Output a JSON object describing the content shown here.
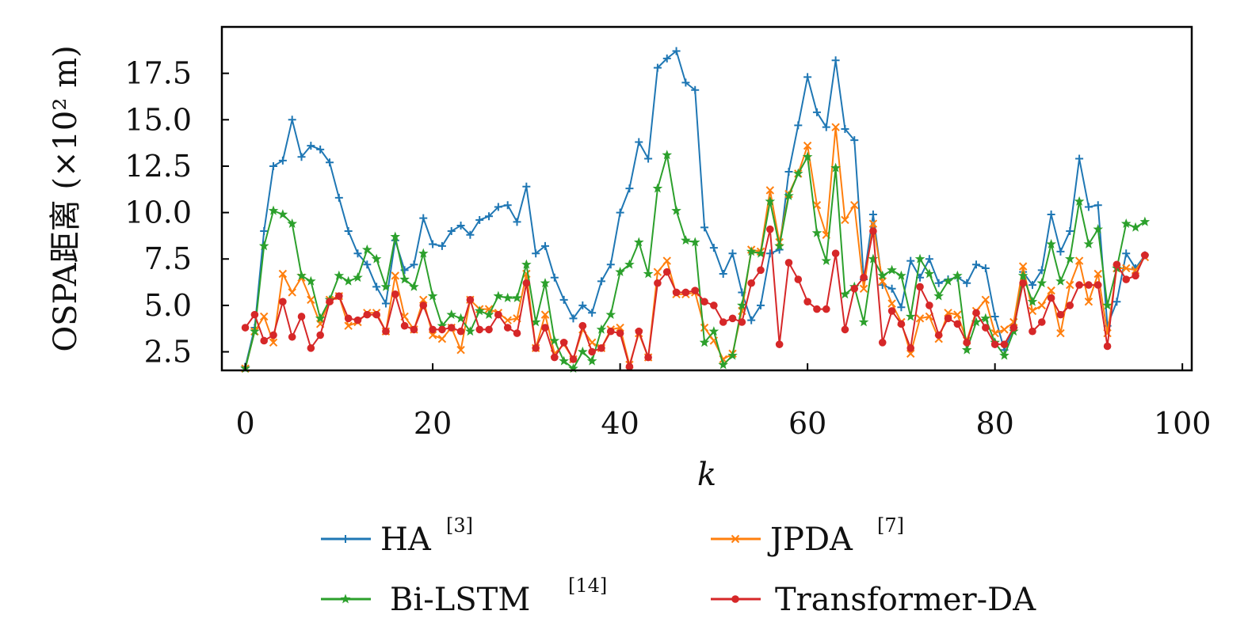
{
  "chart_data": {
    "type": "line",
    "xlabel": "k",
    "ylabel": "OSPA距离 (×10² m)",
    "xlim": [
      -2.5,
      101
    ],
    "ylim": [
      1.5,
      20
    ],
    "xticks": [
      0,
      20,
      40,
      60,
      80,
      100
    ],
    "yticks": [
      2.5,
      5.0,
      7.5,
      10.0,
      12.5,
      15.0,
      17.5
    ],
    "xtick_labels": [
      "0",
      "20",
      "40",
      "60",
      "80",
      "100"
    ],
    "ytick_labels": [
      "2.5",
      "5.0",
      "7.5",
      "10.0",
      "12.5",
      "15.0",
      "17.5"
    ],
    "grid": false,
    "legend_position": "bottom",
    "x": [
      0,
      1,
      2,
      3,
      4,
      5,
      6,
      7,
      8,
      9,
      10,
      11,
      12,
      13,
      14,
      15,
      16,
      17,
      18,
      19,
      20,
      21,
      22,
      23,
      24,
      25,
      26,
      27,
      28,
      29,
      30,
      31,
      32,
      33,
      34,
      35,
      36,
      37,
      38,
      39,
      40,
      41,
      42,
      43,
      44,
      45,
      46,
      47,
      48,
      49,
      50,
      51,
      52,
      53,
      54,
      55,
      56,
      57,
      58,
      59,
      60,
      61,
      62,
      63,
      64,
      65,
      66,
      67,
      68,
      69,
      70,
      71,
      72,
      73,
      74,
      75,
      76,
      77,
      78,
      79,
      80,
      81,
      82,
      83,
      84,
      85,
      86,
      87,
      88,
      89,
      90,
      91,
      92,
      93,
      94,
      95,
      96
    ],
    "series": [
      {
        "name": "HA",
        "ref": "[3]",
        "color": "#1f77b4",
        "marker": "plus",
        "values": [
          1.7,
          3.8,
          9.0,
          12.5,
          12.8,
          15.0,
          13.0,
          13.6,
          13.4,
          12.7,
          10.8,
          9.0,
          7.8,
          7.2,
          6.0,
          5.1,
          8.5,
          6.9,
          7.2,
          9.7,
          8.3,
          8.2,
          9.0,
          9.3,
          8.8,
          9.6,
          9.8,
          10.3,
          10.4,
          9.5,
          11.4,
          7.8,
          8.2,
          6.5,
          5.3,
          4.3,
          5.0,
          4.6,
          6.3,
          7.2,
          10.0,
          11.3,
          13.8,
          12.9,
          17.8,
          18.3,
          18.7,
          17.0,
          16.6,
          9.2,
          8.1,
          6.7,
          7.8,
          5.7,
          4.2,
          5.0,
          7.8,
          8.0,
          12.2,
          14.7,
          17.3,
          15.4,
          14.6,
          18.2,
          14.5,
          13.9,
          6.4,
          9.9,
          6.1,
          5.9,
          4.9,
          7.4,
          6.5,
          7.5,
          6.2,
          6.4,
          6.5,
          6.2,
          7.2,
          7.0,
          4.4,
          2.6,
          3.8,
          6.8,
          6.1,
          6.9,
          9.9,
          7.9,
          9.0,
          12.9,
          10.3,
          10.4,
          3.9,
          5.2,
          7.8,
          7.0,
          7.7
        ]
      },
      {
        "name": "JPDA",
        "ref": "[7]",
        "color": "#ff7f0e",
        "marker": "x",
        "values": [
          1.6,
          3.6,
          4.4,
          3.0,
          6.7,
          5.7,
          6.5,
          5.3,
          4.0,
          5.3,
          5.5,
          3.9,
          4.1,
          4.6,
          4.6,
          3.6,
          6.6,
          4.4,
          3.7,
          5.3,
          3.4,
          3.2,
          3.8,
          2.6,
          5.3,
          4.8,
          4.8,
          4.6,
          4.2,
          4.3,
          6.7,
          2.7,
          4.5,
          2.4,
          2.9,
          2.1,
          3.7,
          3.0,
          2.7,
          3.7,
          3.8,
          1.8,
          3.5,
          2.2,
          6.8,
          7.4,
          5.6,
          5.6,
          5.7,
          3.8,
          3.1,
          2.1,
          2.4,
          4.7,
          8.0,
          7.9,
          11.2,
          8.4,
          11.0,
          12.1,
          13.6,
          10.4,
          8.8,
          14.6,
          9.6,
          10.4,
          5.9,
          9.4,
          6.3,
          5.1,
          4.1,
          2.4,
          4.3,
          4.4,
          3.2,
          4.6,
          4.5,
          3.1,
          4.7,
          5.3,
          3.5,
          3.7,
          4.1,
          7.1,
          4.7,
          5.0,
          5.8,
          3.5,
          6.1,
          7.4,
          5.2,
          6.7,
          3.5,
          7.0,
          7.0,
          6.9,
          7.6
        ]
      },
      {
        "name": "Bi-LSTM",
        "ref": "[14]",
        "color": "#2ca02c",
        "marker": "star",
        "values": [
          1.6,
          3.6,
          8.2,
          10.1,
          9.9,
          9.4,
          6.6,
          6.3,
          4.3,
          5.3,
          6.6,
          6.3,
          6.5,
          8.0,
          7.5,
          6.0,
          8.7,
          6.4,
          6.0,
          7.8,
          5.5,
          3.9,
          4.5,
          4.3,
          3.6,
          4.7,
          4.5,
          5.5,
          5.4,
          5.4,
          7.2,
          4.1,
          6.2,
          3.1,
          2.0,
          1.6,
          2.5,
          2.0,
          3.7,
          4.5,
          6.8,
          7.2,
          8.4,
          6.7,
          11.3,
          13.1,
          10.1,
          8.5,
          8.4,
          3.0,
          3.6,
          1.8,
          2.3,
          5.0,
          7.9,
          7.8,
          10.6,
          8.2,
          10.9,
          12.1,
          13.0,
          8.9,
          7.4,
          12.4,
          5.6,
          6.0,
          4.1,
          7.5,
          6.6,
          6.9,
          6.6,
          4.4,
          7.5,
          6.7,
          5.5,
          6.3,
          6.6,
          2.6,
          4.1,
          4.3,
          3.0,
          2.3,
          3.6,
          6.6,
          5.2,
          6.2,
          8.3,
          6.3,
          7.5,
          10.6,
          8.3,
          9.1,
          5.0,
          7.0,
          9.4,
          9.2,
          9.5
        ]
      },
      {
        "name": "Transformer-DA",
        "ref": "",
        "color": "#d62728",
        "marker": "dot",
        "values": [
          3.8,
          4.5,
          3.1,
          3.4,
          5.2,
          3.3,
          4.4,
          2.7,
          3.4,
          5.2,
          5.5,
          4.3,
          4.2,
          4.5,
          4.5,
          3.6,
          5.6,
          3.9,
          3.7,
          5.0,
          3.7,
          3.7,
          3.8,
          3.6,
          5.3,
          3.7,
          3.7,
          4.5,
          3.8,
          3.5,
          6.2,
          2.7,
          3.8,
          2.2,
          3.0,
          2.1,
          3.9,
          2.5,
          2.7,
          3.6,
          3.5,
          1.7,
          3.6,
          2.2,
          6.2,
          6.8,
          5.7,
          5.7,
          5.8,
          5.2,
          5.0,
          4.1,
          4.3,
          4.1,
          6.2,
          6.9,
          9.1,
          2.9,
          7.3,
          6.4,
          5.2,
          4.8,
          4.8,
          7.8,
          3.7,
          5.9,
          6.5,
          9.0,
          3.0,
          4.7,
          4.0,
          2.7,
          6.0,
          5.0,
          3.4,
          4.3,
          4.0,
          3.0,
          4.6,
          3.8,
          2.9,
          2.9,
          3.8,
          6.2,
          3.6,
          4.1,
          5.4,
          4.5,
          5.0,
          6.1,
          6.1,
          6.1,
          2.8,
          7.2,
          6.4,
          6.6,
          7.7
        ]
      }
    ]
  }
}
